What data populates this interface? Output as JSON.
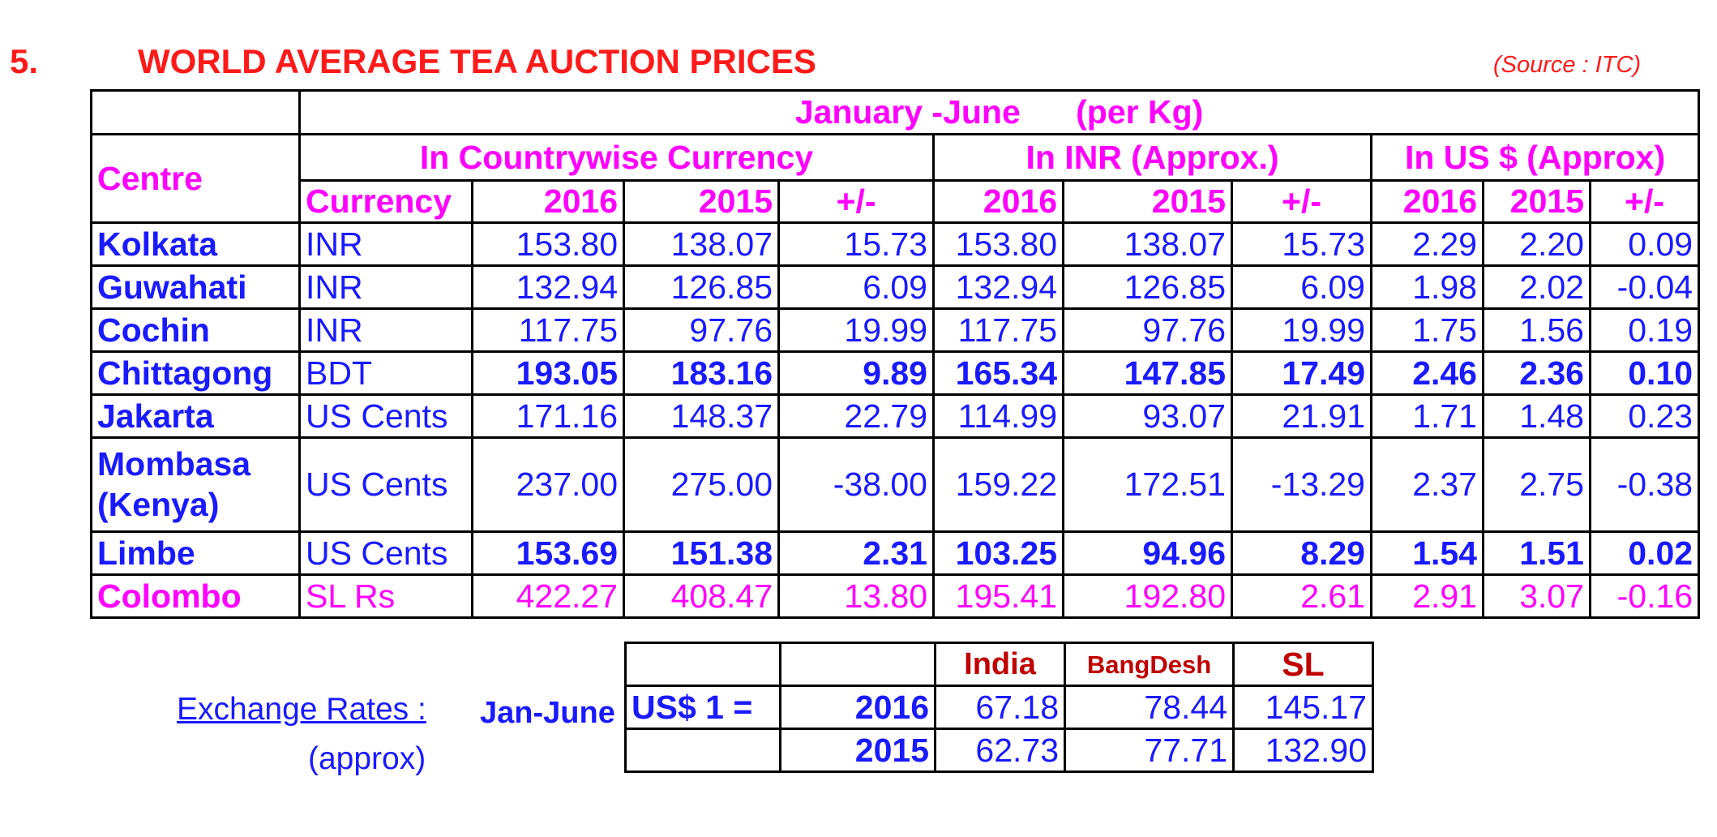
{
  "header": {
    "section_number": "5.",
    "title": "WORLD AVERAGE TEA AUCTION PRICES",
    "source": "(Source : ITC)"
  },
  "table": {
    "period_label": "January -June      (per Kg)",
    "centre_header": "Centre",
    "groups": [
      "In Countrywise Currency",
      "In INR (Approx.)",
      "In US $ (Approx)"
    ],
    "columns": [
      "Currency",
      "2016",
      "2015",
      "+/-",
      "2016",
      "2015",
      "+/-",
      "2016",
      "2015",
      "+/-"
    ],
    "rows": [
      {
        "centre": "Kolkata",
        "currency": "INR",
        "values": [
          "153.80",
          "138.07",
          "15.73",
          "153.80",
          "138.07",
          "15.73",
          "2.29",
          "2.20",
          "0.09"
        ]
      },
      {
        "centre": "Guwahati",
        "currency": "INR",
        "values": [
          "132.94",
          "126.85",
          "6.09",
          "132.94",
          "126.85",
          "6.09",
          "1.98",
          "2.02",
          "-0.04"
        ]
      },
      {
        "centre": "Cochin",
        "currency": "INR",
        "values": [
          "117.75",
          "97.76",
          "19.99",
          "117.75",
          "97.76",
          "19.99",
          "1.75",
          "1.56",
          "0.19"
        ]
      },
      {
        "centre": "Chittagong",
        "currency": "BDT",
        "values": [
          "193.05",
          "183.16",
          "9.89",
          "165.34",
          "147.85",
          "17.49",
          "2.46",
          "2.36",
          "0.10"
        ]
      },
      {
        "centre": "Jakarta",
        "currency": "US Cents",
        "values": [
          "171.16",
          "148.37",
          "22.79",
          "114.99",
          "93.07",
          "21.91",
          "1.71",
          "1.48",
          "0.23"
        ]
      },
      {
        "centre": "Mombasa (Kenya)",
        "currency": "US Cents",
        "values": [
          "237.00",
          "275.00",
          "-38.00",
          "159.22",
          "172.51",
          "-13.29",
          "2.37",
          "2.75",
          "-0.38"
        ]
      },
      {
        "centre": "Limbe",
        "currency": "US Cents",
        "values": [
          "153.69",
          "151.38",
          "2.31",
          "103.25",
          "94.96",
          "8.29",
          "1.54",
          "1.51",
          "0.02"
        ]
      },
      {
        "centre": "Colombo",
        "currency": "SL Rs",
        "values": [
          "422.27",
          "408.47",
          "13.80",
          "195.41",
          "192.80",
          "2.61",
          "2.91",
          "3.07",
          "-0.16"
        ]
      }
    ]
  },
  "exchange": {
    "label": "Exchange Rates :",
    "period": "Jan-June",
    "approx": "(approx)",
    "base": "US$ 1 =",
    "countries": [
      "India",
      "BangDesh",
      "SL"
    ],
    "rows": [
      {
        "year": "2016",
        "values": [
          "67.18",
          "78.44",
          "145.17"
        ]
      },
      {
        "year": "2015",
        "values": [
          "62.73",
          "77.71",
          "132.90"
        ]
      }
    ]
  },
  "colors": {
    "title_red": "#ff1a1a",
    "value_blue": "#1a1aff",
    "header_magenta": "#ff00ff",
    "country_dark_red": "#c00000"
  }
}
